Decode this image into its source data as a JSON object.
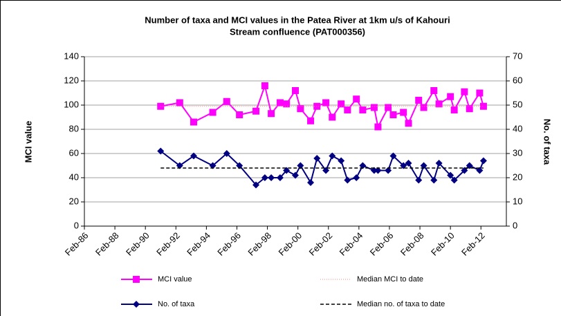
{
  "chart_data": {
    "type": "line",
    "title": [
      "Number of taxa and MCI values in the Patea River at 1km u/s of Kahouri",
      "Stream confluence (PAT000356)"
    ],
    "ylabel": "MCI value",
    "y2label": "No. of taxa",
    "x": [
      "1991-02",
      "1992-05",
      "1993-04",
      "1994-07",
      "1995-06",
      "1996-04",
      "1997-05",
      "1997-12",
      "1998-05",
      "1998-12",
      "1999-05",
      "1999-12",
      "2000-04",
      "2000-12",
      "2001-05",
      "2001-12",
      "2002-05",
      "2002-12",
      "2003-05",
      "2003-12",
      "2004-05",
      "2005-02",
      "2005-05",
      "2006-01",
      "2006-05",
      "2007-01",
      "2007-05",
      "2008-01",
      "2008-05",
      "2009-01",
      "2009-05",
      "2010-02",
      "2010-05",
      "2011-01",
      "2011-05",
      "2012-01",
      "2012-04"
    ],
    "xlim": [
      "1986-02",
      "2013-10"
    ],
    "xticks": [
      {
        "value": "1986-02",
        "label": "Feb-86"
      },
      {
        "value": "1988-02",
        "label": "Feb-88"
      },
      {
        "value": "1990-02",
        "label": "Feb-90"
      },
      {
        "value": "1992-02",
        "label": "Feb-92"
      },
      {
        "value": "1994-02",
        "label": "Feb-94"
      },
      {
        "value": "1996-02",
        "label": "Feb-96"
      },
      {
        "value": "1998-02",
        "label": "Feb-98"
      },
      {
        "value": "2000-02",
        "label": "Feb-00"
      },
      {
        "value": "2002-02",
        "label": "Feb-02"
      },
      {
        "value": "2004-02",
        "label": "Feb-04"
      },
      {
        "value": "2006-02",
        "label": "Feb-06"
      },
      {
        "value": "2008-02",
        "label": "Feb-08"
      },
      {
        "value": "2010-02",
        "label": "Feb-10"
      },
      {
        "value": "2012-02",
        "label": "Feb-12"
      }
    ],
    "ylim": [
      0,
      140
    ],
    "yticks": [
      0,
      20,
      40,
      60,
      80,
      100,
      120,
      140
    ],
    "y2lim": [
      0,
      70
    ],
    "y2ticks": [
      0,
      10,
      20,
      30,
      40,
      50,
      60,
      70
    ],
    "grid": true,
    "series": [
      {
        "name": "MCI value",
        "color": "#ff00ff",
        "marker": "square",
        "values": [
          99,
          102,
          86,
          94,
          103,
          92,
          95,
          116,
          93,
          102,
          101,
          112,
          97,
          87,
          99,
          102,
          90,
          101,
          96,
          105,
          96,
          98,
          82,
          98,
          92,
          94,
          85,
          104,
          98,
          112,
          101,
          107,
          96,
          111,
          97,
          110,
          99
        ]
      },
      {
        "name": "Median MCI to date",
        "color": "#ff8080",
        "dash": "dotted",
        "median": 99
      },
      {
        "name": "No. of taxa",
        "color": "#000080",
        "marker": "diamond",
        "axis": "y2",
        "values": [
          31,
          25,
          29,
          25,
          30,
          25,
          17,
          20,
          20,
          20,
          23,
          21,
          25,
          18,
          28,
          23,
          29,
          27,
          19,
          20,
          25,
          23,
          23,
          23,
          29,
          25,
          26,
          19,
          25,
          19,
          26,
          21,
          19,
          23,
          25,
          23,
          27
        ]
      },
      {
        "name": "Median no. of taxa to date",
        "color": "#000000",
        "dash": "dashed",
        "axis": "y2",
        "median": 24
      }
    ]
  }
}
